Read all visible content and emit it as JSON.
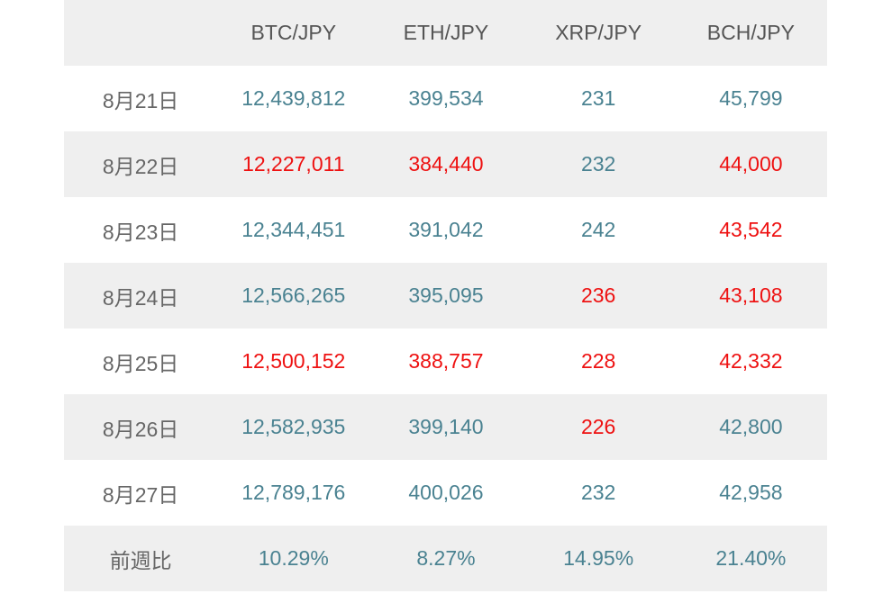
{
  "table": {
    "header": [
      "BTC/JPY",
      "ETH/JPY",
      "XRP/JPY",
      "BCH/JPY"
    ],
    "rows": [
      [
        "8月21日",
        "12,439,812",
        "399,534",
        "231",
        "45,799"
      ],
      [
        "8月22日",
        "12,227,011",
        "384,440",
        "232",
        "44,000"
      ],
      [
        "8月23日",
        "12,344,451",
        "391,042",
        "242",
        "43,542"
      ],
      [
        "8月24日",
        "12,566,265",
        "395,095",
        "236",
        "43,108"
      ],
      [
        "8月25日",
        "12,500,152",
        "388,757",
        "228",
        "42,332"
      ],
      [
        "8月26日",
        "12,582,935",
        "399,140",
        "226",
        "42,800"
      ],
      [
        "8月27日",
        "12,789,176",
        "400,026",
        "232",
        "42,958"
      ]
    ],
    "footer": [
      "前週比",
      "10.29%",
      "8.27%",
      "14.95%",
      "21.40%"
    ],
    "rise_color": "#4a8291",
    "fall_color": "#ee1111"
  }
}
